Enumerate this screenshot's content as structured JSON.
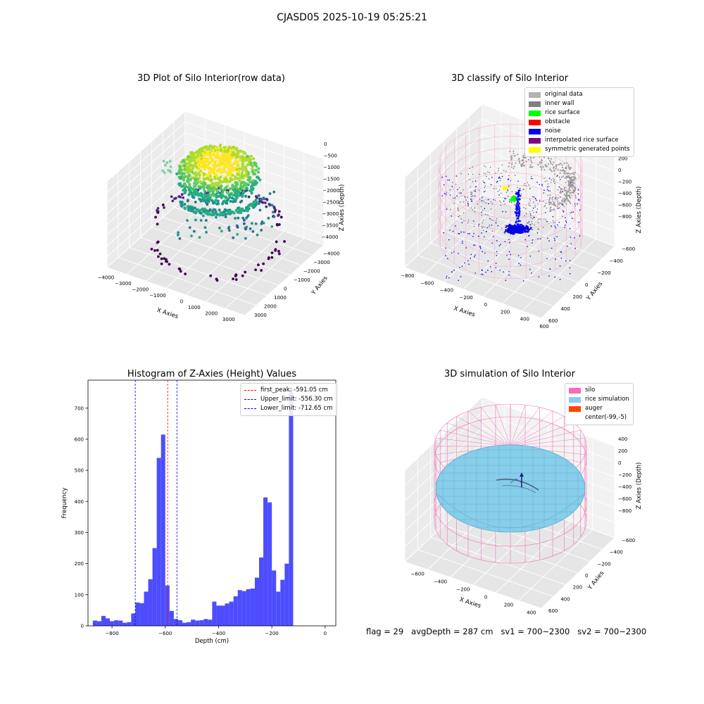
{
  "suptitle": "CJASD05 2025-10-19 05:25:21",
  "status": {
    "flag": "flag = 29",
    "avg": "avgDepth = 287 cm",
    "sv1": "sv1 = 700~2300",
    "sv2": "sv2 = 700~2300"
  },
  "chart_data": [
    {
      "type": "scatter3d",
      "title": "3D Plot of Silo Interior(row data)",
      "xlabel": "X Axies",
      "ylabel": "Y Axies",
      "zlabel": "Z Axies (Depth)",
      "xticks": [
        "−4000",
        "−3000",
        "−2000",
        "−1000",
        "0",
        "1000",
        "2000",
        "3000"
      ],
      "yticks": [
        "−4000",
        "−3000",
        "−2000",
        "−1000",
        "0",
        "1000",
        "2000",
        "3000"
      ],
      "zticks": [
        "0",
        "−500",
        "−1000",
        "−1500",
        "−2000",
        "−2500",
        "−3000",
        "−3500",
        "−4000"
      ],
      "colormap": "viridis"
    },
    {
      "type": "scatter3d",
      "title": "3D classify of Silo Interior",
      "xlabel": "X Axies",
      "ylabel": "Y Axies",
      "zlabel": "Z Axies (Depth)",
      "xticks": [
        "−800",
        "−600",
        "−400",
        "−200",
        "0",
        "200",
        "400",
        "600"
      ],
      "yticks": [
        "−600",
        "−400",
        "−200",
        "0",
        "200",
        "400",
        "600"
      ],
      "zticks": [
        "400",
        "200",
        "0",
        "−200",
        "−400",
        "−600",
        "−800"
      ],
      "legend": [
        {
          "label": "original data",
          "color": "#b3b3b3"
        },
        {
          "label": "inner wall",
          "color": "#808080"
        },
        {
          "label": "rice surface",
          "color": "#00ff00"
        },
        {
          "label": "obstacle",
          "color": "#ff0000"
        },
        {
          "label": "noise",
          "color": "#0000ff"
        },
        {
          "label": "interpolated rice surface",
          "color": "#800080"
        },
        {
          "label": "symmetric generated points",
          "color": "#ffff00"
        }
      ],
      "legend_position": "top-right"
    },
    {
      "type": "bar",
      "title": "Histogram of Z-Axies (Height) Values",
      "xlabel": "Depth (cm)",
      "ylabel": "Frequency",
      "xlim": [
        -890,
        40
      ],
      "ylim": [
        0,
        790
      ],
      "bin_width": 16,
      "xticks": [
        -800,
        -600,
        -400,
        -200,
        0
      ],
      "xtick_labels": [
        "−800",
        "−600",
        "−400",
        "−200",
        "0"
      ],
      "yticks": [
        0,
        100,
        200,
        300,
        400,
        500,
        600,
        700
      ],
      "bar_color": "#4d4dff",
      "bins": [
        {
          "x": -864,
          "v": 17
        },
        {
          "x": -848,
          "v": 15
        },
        {
          "x": -832,
          "v": 32
        },
        {
          "x": -816,
          "v": 24
        },
        {
          "x": -800,
          "v": 15
        },
        {
          "x": -784,
          "v": 18
        },
        {
          "x": -768,
          "v": 17
        },
        {
          "x": -752,
          "v": 10
        },
        {
          "x": -736,
          "v": 12
        },
        {
          "x": -720,
          "v": 40
        },
        {
          "x": -704,
          "v": 75
        },
        {
          "x": -688,
          "v": 73
        },
        {
          "x": -672,
          "v": 110
        },
        {
          "x": -656,
          "v": 150
        },
        {
          "x": -640,
          "v": 250
        },
        {
          "x": -624,
          "v": 540
        },
        {
          "x": -608,
          "v": 615
        },
        {
          "x": -592,
          "v": 130
        },
        {
          "x": -576,
          "v": 48
        },
        {
          "x": -560,
          "v": 22
        },
        {
          "x": -544,
          "v": 18
        },
        {
          "x": -528,
          "v": 10
        },
        {
          "x": -512,
          "v": 12
        },
        {
          "x": -496,
          "v": 20
        },
        {
          "x": -480,
          "v": 17
        },
        {
          "x": -464,
          "v": 18
        },
        {
          "x": -448,
          "v": 22
        },
        {
          "x": -432,
          "v": 20
        },
        {
          "x": -416,
          "v": 78
        },
        {
          "x": -400,
          "v": 65
        },
        {
          "x": -384,
          "v": 65
        },
        {
          "x": -368,
          "v": 72
        },
        {
          "x": -352,
          "v": 78
        },
        {
          "x": -336,
          "v": 95
        },
        {
          "x": -320,
          "v": 115
        },
        {
          "x": -304,
          "v": 112
        },
        {
          "x": -288,
          "v": 118
        },
        {
          "x": -272,
          "v": 120
        },
        {
          "x": -256,
          "v": 155
        },
        {
          "x": -240,
          "v": 220
        },
        {
          "x": -224,
          "v": 413
        },
        {
          "x": -208,
          "v": 397
        },
        {
          "x": -192,
          "v": 178
        },
        {
          "x": -176,
          "v": 110
        },
        {
          "x": -160,
          "v": 148
        },
        {
          "x": -144,
          "v": 200
        },
        {
          "x": -128,
          "v": 760
        }
      ],
      "vlines": [
        {
          "label": "first_peak: -591.05 cm",
          "x": -591.05,
          "color": "#ff0000"
        },
        {
          "label": "Upper_limit: -556.30 cm",
          "x": -556.3,
          "color": "#0000ff"
        },
        {
          "label": "Lower_limit: -712.65 cm",
          "x": -712.65,
          "color": "#0000ff"
        }
      ],
      "legend_position": "top-right"
    },
    {
      "type": "surface3d",
      "title": "3D simulation of Silo Interior",
      "xlabel": "X Axies",
      "ylabel": "Y Axies",
      "zlabel": "Z Axies (Depth)",
      "xticks": [
        "−600",
        "−400",
        "−200",
        "0",
        "200",
        "400"
      ],
      "yticks": [
        "−600",
        "−400",
        "−200",
        "0",
        "200",
        "400",
        "600"
      ],
      "zticks": [
        "400",
        "200",
        "0",
        "−200",
        "−400",
        "−600",
        "−800"
      ],
      "legend": [
        {
          "label": "silo",
          "color": "#ff69b4"
        },
        {
          "label": "rice simulation",
          "color": "#87ceeb"
        },
        {
          "label": "auger",
          "color": "#ff4500"
        },
        {
          "label": "center(-99,-5)",
          "color": "#ffffff"
        }
      ],
      "legend_position": "top-right"
    }
  ]
}
